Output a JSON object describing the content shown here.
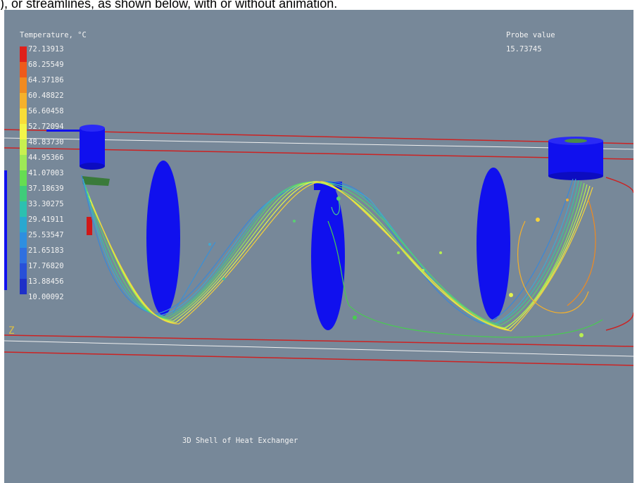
{
  "page_header_text": "), or streamlines, as shown below, with or without animation.",
  "legend": {
    "title": "Temperature, °C",
    "values": [
      "72.13913",
      "68.25549",
      "64.37186",
      "60.48822",
      "56.60458",
      "52.72094",
      "48.83730",
      "44.95366",
      "41.07003",
      "37.18639",
      "33.30275",
      "29.41911",
      "25.53547",
      "21.65183",
      "17.76820",
      "13.88456",
      "10.00092"
    ],
    "colors": [
      "#e0201a",
      "#ee5a1c",
      "#f08a20",
      "#f5b12b",
      "#f8dd38",
      "#f3f54a",
      "#c8f050",
      "#9ee856",
      "#66dd52",
      "#3fcc7a",
      "#2cc0b0",
      "#2aa8d0",
      "#2e8fe0",
      "#3070e0",
      "#2850d8",
      "#1e30c8"
    ]
  },
  "probe": {
    "title": "Probe value",
    "value": "15.73745"
  },
  "axis_label": "Z",
  "caption": "3D Shell of Heat Exchanger",
  "colors": {
    "viewport_background": "#778899",
    "shell_outline": "#cc2222",
    "baffle": "#1010ee",
    "centerline": "#f0f0f0"
  }
}
